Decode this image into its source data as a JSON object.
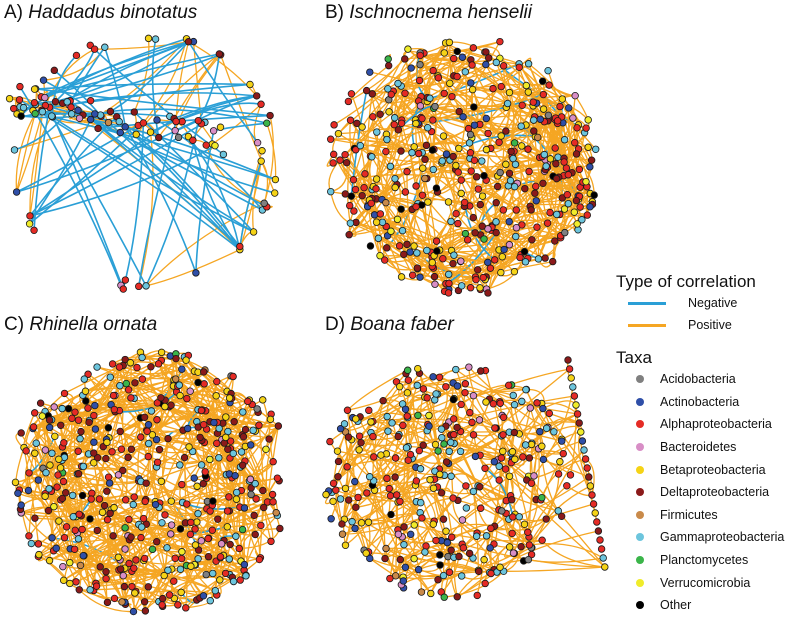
{
  "panels": [
    {
      "letter": "A)",
      "species": "Haddadus binotatus"
    },
    {
      "letter": "B)",
      "species": "Ischnocnema henselii"
    },
    {
      "letter": "C)",
      "species": "Rhinella ornata"
    },
    {
      "letter": "D)",
      "species": "Boana faber"
    }
  ],
  "legend": {
    "correlation_title": "Type of correlation",
    "correlations": [
      {
        "label": "Negative",
        "color": "#2a9fd6"
      },
      {
        "label": "Positive",
        "color": "#f5a623"
      }
    ],
    "taxa_title": "Taxa",
    "taxa": [
      {
        "label": "Acidobacteria",
        "color": "#808080"
      },
      {
        "label": "Actinobacteria",
        "color": "#2f4fa8"
      },
      {
        "label": "Alphaproteobacteria",
        "color": "#e52b25"
      },
      {
        "label": "Bacteroidetes",
        "color": "#d88ec6"
      },
      {
        "label": "Betaproteobacteria",
        "color": "#f5d316"
      },
      {
        "label": "Deltaproteobacteria",
        "color": "#8b1a1a"
      },
      {
        "label": "Firmicutes",
        "color": "#c98a4a"
      },
      {
        "label": "Gammaproteobacteria",
        "color": "#6cc5dd"
      },
      {
        "label": "Planctomycetes",
        "color": "#3bb54a"
      },
      {
        "label": "Verrucomicrobia",
        "color": "#f0ec2a"
      },
      {
        "label": "Other",
        "color": "#000000"
      }
    ]
  }
}
